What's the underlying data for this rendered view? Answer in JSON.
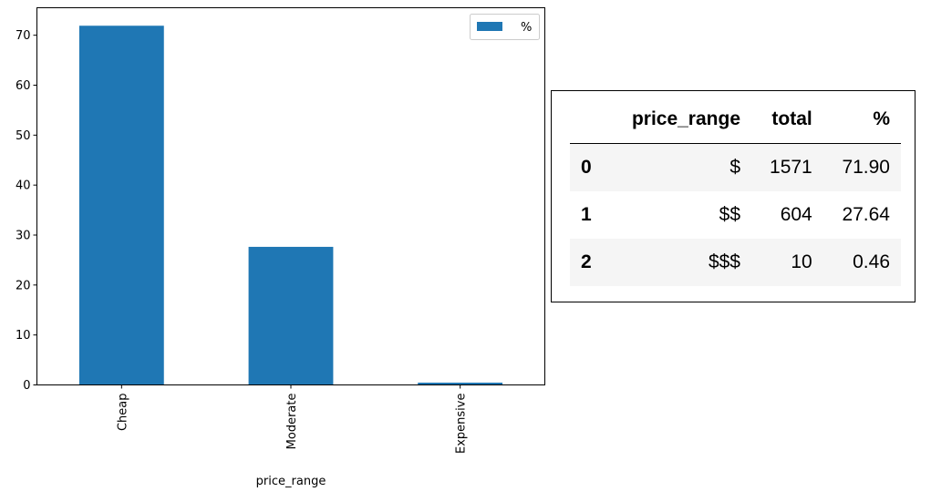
{
  "chart_data": {
    "type": "bar",
    "categories": [
      "Cheap",
      "Moderate",
      "Expensive"
    ],
    "series": [
      {
        "name": "%",
        "values": [
          71.9,
          27.64,
          0.46
        ],
        "color": "#1f77b4"
      }
    ],
    "xlabel": "price_range",
    "ylabel": "",
    "ylim": [
      0,
      75.5
    ],
    "yticks": [
      0,
      10,
      20,
      30,
      40,
      50,
      60,
      70
    ],
    "legend": "top-right",
    "grid": false
  },
  "table": {
    "columns": [
      "",
      "price_range",
      "total",
      "%"
    ],
    "rows": [
      {
        "index": "0",
        "price_range": "$",
        "total": "1571",
        "percent": "71.90"
      },
      {
        "index": "1",
        "price_range": "$$",
        "total": "604",
        "percent": "27.64"
      },
      {
        "index": "2",
        "price_range": "$$$",
        "total": "10",
        "percent": "0.46"
      }
    ]
  }
}
